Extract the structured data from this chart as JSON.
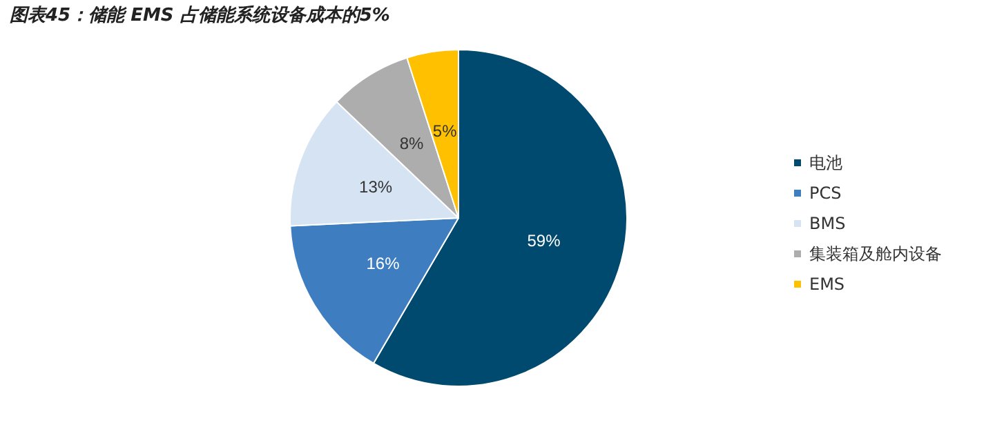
{
  "chart_data": {
    "type": "pie",
    "title": "图表45：储能 EMS 占储能系统设备成本的5%",
    "categories": [
      "电池",
      "PCS",
      "BMS",
      "集装箱及舱内设备",
      "EMS"
    ],
    "values": [
      59,
      16,
      13,
      8,
      5
    ],
    "colors": [
      "#004a70",
      "#3e7ec0",
      "#d5e3f3",
      "#adadad",
      "#ffc000"
    ],
    "value_labels": [
      "59%",
      "16%",
      "13%",
      "8%",
      "5%"
    ],
    "legend": "right"
  }
}
